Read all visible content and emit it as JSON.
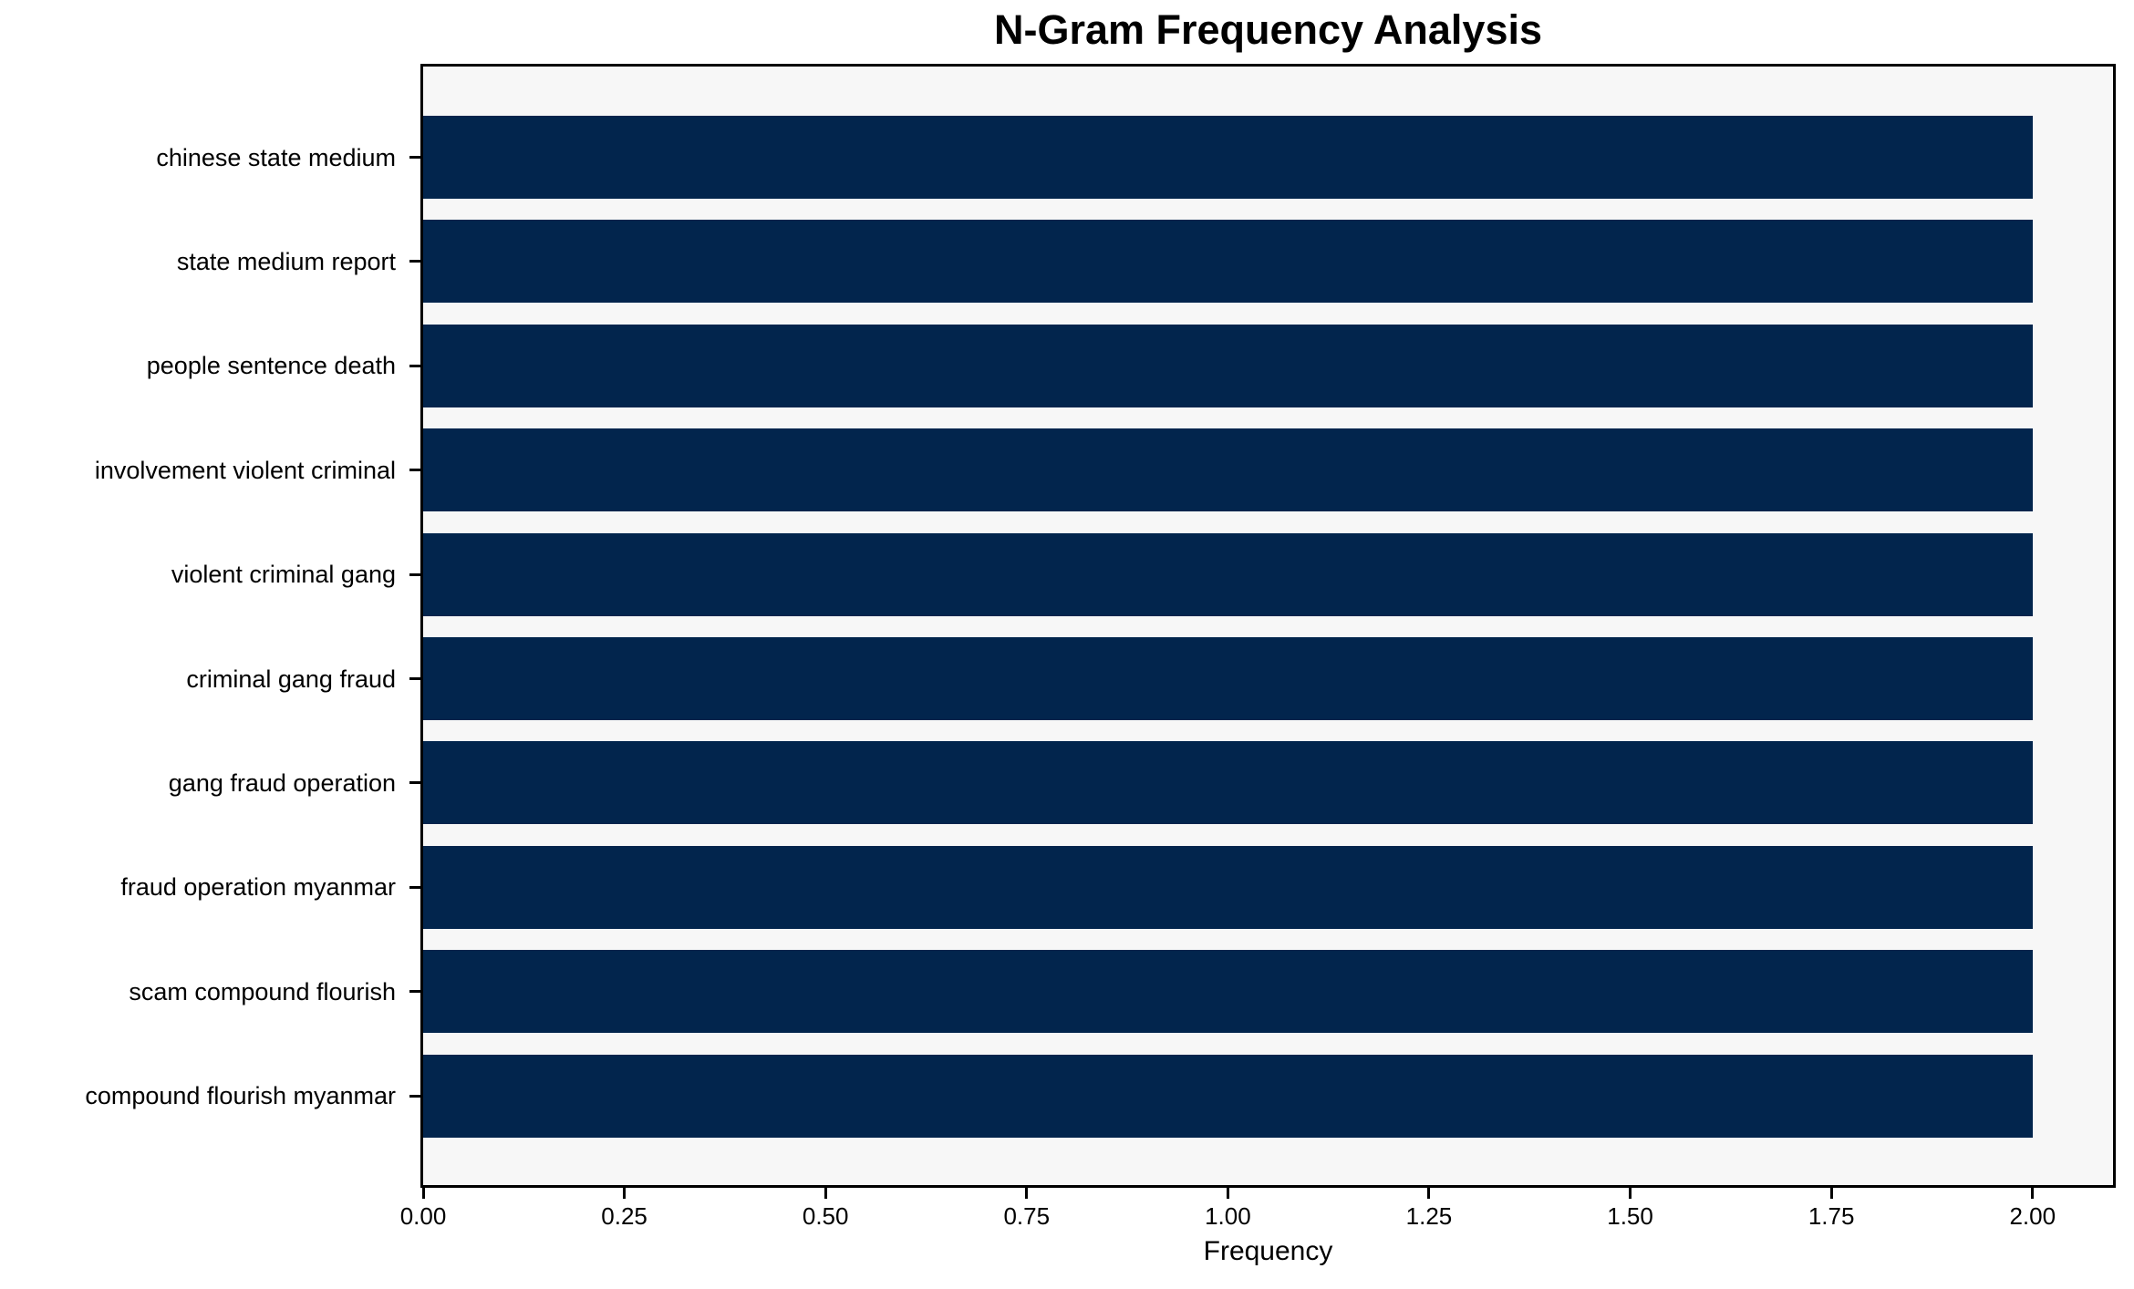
{
  "chart_data": {
    "type": "bar",
    "orientation": "horizontal",
    "title": "N-Gram Frequency Analysis",
    "xlabel": "Frequency",
    "ylabel": "",
    "categories": [
      "chinese state medium",
      "state medium report",
      "people sentence death",
      "involvement violent criminal",
      "violent criminal gang",
      "criminal gang fraud",
      "gang fraud operation",
      "fraud operation myanmar",
      "scam compound flourish",
      "compound flourish myanmar"
    ],
    "values": [
      2,
      2,
      2,
      2,
      2,
      2,
      2,
      2,
      2,
      2
    ],
    "xlim": [
      0,
      2.1
    ],
    "xticks": [
      0.0,
      0.25,
      0.5,
      0.75,
      1.0,
      1.25,
      1.5,
      1.75,
      2.0
    ],
    "xtick_labels": [
      "0.00",
      "0.25",
      "0.50",
      "0.75",
      "1.00",
      "1.25",
      "1.50",
      "1.75",
      "2.00"
    ],
    "grid": false,
    "legend": null,
    "colors": {
      "bar": "#02254d",
      "plot_background": "#f7f7f7",
      "figure_background": "#ffffff",
      "axis": "#000000",
      "text": "#000000"
    }
  }
}
